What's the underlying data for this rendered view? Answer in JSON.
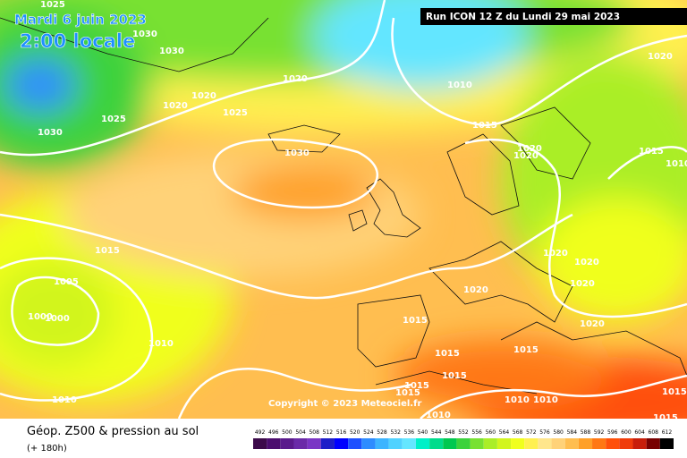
{
  "header": {
    "date": "Mardi 6 juin 2023",
    "time": "2:00 locale",
    "run": "Run ICON 12 Z du Lundi 29 mai 2023"
  },
  "copyright": "Copyright © 2023 Meteociel.fr",
  "footer": {
    "title": "Géop. Z500 & pression au sol",
    "lead": "(+ 180h)"
  },
  "color_scale": {
    "values": [
      492,
      496,
      500,
      504,
      508,
      512,
      516,
      520,
      524,
      528,
      532,
      536,
      540,
      544,
      548,
      552,
      556,
      560,
      564,
      568,
      572,
      576,
      580,
      584,
      588,
      592,
      596,
      600,
      604,
      608,
      612
    ],
    "colors": [
      "#3c0a4a",
      "#4b0d6e",
      "#5a1a8c",
      "#6a2aa8",
      "#7a35c5",
      "#1e1ec8",
      "#0000ff",
      "#1e50ff",
      "#2d8cff",
      "#3cb4ff",
      "#50d2ff",
      "#64e6ff",
      "#00f0c8",
      "#00dc8c",
      "#00c850",
      "#3cd23c",
      "#78e132",
      "#aaee28",
      "#d2f51e",
      "#f0ff1e",
      "#fff050",
      "#ffe68c",
      "#ffd278",
      "#ffbe50",
      "#ffa028",
      "#ff7814",
      "#ff500a",
      "#f03c0a",
      "#c81e0a",
      "#780000",
      "#000000"
    ]
  },
  "isobar_labels": [
    1025,
    1030,
    1030,
    1020,
    1020,
    1025,
    1025,
    1030,
    1020,
    1010,
    1015,
    1020,
    1030,
    1020,
    1020,
    1015,
    1010,
    1015,
    1005,
    1000,
    1000,
    1010,
    1020,
    1020,
    1020,
    1020,
    1015,
    1020,
    1015,
    1015,
    1015,
    1015,
    1015,
    1010,
    1010,
    1010,
    1010,
    1015,
    1015
  ]
}
